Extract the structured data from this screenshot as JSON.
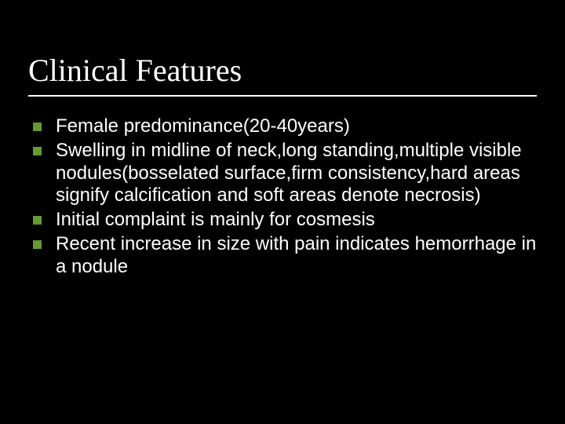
{
  "slide": {
    "title": "Clinical Features",
    "title_font": "Times New Roman",
    "title_fontsize": 40,
    "title_color": "#ffffff",
    "rule_color": "#ffffff",
    "background_color": "#000000",
    "bullet_marker_color": "#669933",
    "bullet_marker_size": 11,
    "body_font": "Arial",
    "body_fontsize": 24,
    "body_color": "#ffffff",
    "bullets": [
      "Female predominance(20-40years)",
      "Swelling in midline of neck,long standing,multiple visible nodules(bosselated surface,firm consistency,hard areas signify calcification and soft areas denote necrosis)",
      "Initial complaint is mainly for cosmesis",
      "Recent increase in size with pain indicates hemorrhage in a nodule"
    ]
  }
}
